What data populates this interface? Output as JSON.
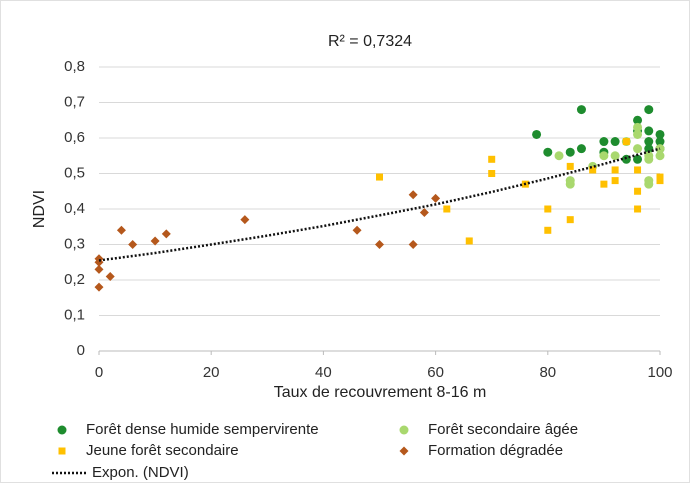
{
  "chart_data": {
    "type": "scatter",
    "title": "R² = 0,7324",
    "xlabel": "Taux de recouvrement 8-16 m",
    "ylabel": "NDVI",
    "xlim": [
      0,
      100
    ],
    "xticks": [
      0,
      20,
      40,
      60,
      80,
      100
    ],
    "ylim": [
      0,
      0.8
    ],
    "yticks": [
      0,
      {
        "value": 0.1,
        "label": "0,1"
      },
      {
        "value": 0.2,
        "label": "0,2"
      },
      {
        "value": 0.3,
        "label": "0,3"
      },
      {
        "value": 0.4,
        "label": "0,4"
      },
      {
        "value": 0.5,
        "label": "0,5"
      },
      {
        "value": 0.6,
        "label": "0,6"
      },
      {
        "value": 0.7,
        "label": "0,7"
      },
      {
        "value": 0.8,
        "label": "0,8"
      }
    ],
    "grid": "y",
    "legend": "bottom",
    "series": [
      {
        "name": "Forêt dense humide sempervirente",
        "color": "#1e8c2e",
        "marker": "circle",
        "x": [
          78,
          80,
          84,
          86,
          86,
          90,
          90,
          92,
          94,
          96,
          96,
          96,
          98,
          98,
          98,
          98,
          100,
          100,
          100
        ],
        "values": [
          0.61,
          0.56,
          0.56,
          0.68,
          0.57,
          0.59,
          0.56,
          0.59,
          0.54,
          0.65,
          0.62,
          0.54,
          0.68,
          0.62,
          0.59,
          0.57,
          0.61,
          0.59,
          0.57
        ]
      },
      {
        "name": "Forêt secondaire âgée",
        "color": "#a9d86e",
        "marker": "circle",
        "x": [
          82,
          84,
          84,
          88,
          90,
          92,
          94,
          96,
          96,
          96,
          98,
          98,
          98,
          98,
          100,
          100
        ],
        "values": [
          0.55,
          0.48,
          0.47,
          0.52,
          0.55,
          0.55,
          0.59,
          0.63,
          0.61,
          0.57,
          0.55,
          0.54,
          0.48,
          0.47,
          0.57,
          0.55
        ]
      },
      {
        "name": "Jeune forêt secondaire",
        "color": "#ffc000",
        "marker": "square",
        "x": [
          50,
          62,
          66,
          70,
          70,
          76,
          80,
          80,
          84,
          84,
          88,
          90,
          92,
          92,
          94,
          96,
          96,
          96,
          100,
          100
        ],
        "values": [
          0.49,
          0.4,
          0.31,
          0.54,
          0.5,
          0.47,
          0.4,
          0.34,
          0.37,
          0.52,
          0.51,
          0.47,
          0.51,
          0.48,
          0.59,
          0.51,
          0.45,
          0.4,
          0.49,
          0.48
        ]
      },
      {
        "name": "Formation dégradée",
        "color": "#b5581c",
        "marker": "diamond",
        "x": [
          0,
          0,
          0,
          0,
          2,
          4,
          6,
          10,
          12,
          26,
          46,
          50,
          56,
          56,
          58,
          60
        ],
        "values": [
          0.26,
          0.25,
          0.23,
          0.18,
          0.21,
          0.34,
          0.3,
          0.31,
          0.33,
          0.37,
          0.34,
          0.3,
          0.44,
          0.3,
          0.39,
          0.43
        ]
      },
      {
        "name": "Expon. (NDVI)",
        "color": "#111111",
        "marker": "dotted-line",
        "x": [
          0,
          10,
          20,
          30,
          40,
          50,
          60,
          70,
          80,
          90,
          100
        ],
        "values": [
          0.255,
          0.276,
          0.3,
          0.325,
          0.352,
          0.382,
          0.413,
          0.448,
          0.486,
          0.527,
          0.57
        ]
      }
    ]
  }
}
